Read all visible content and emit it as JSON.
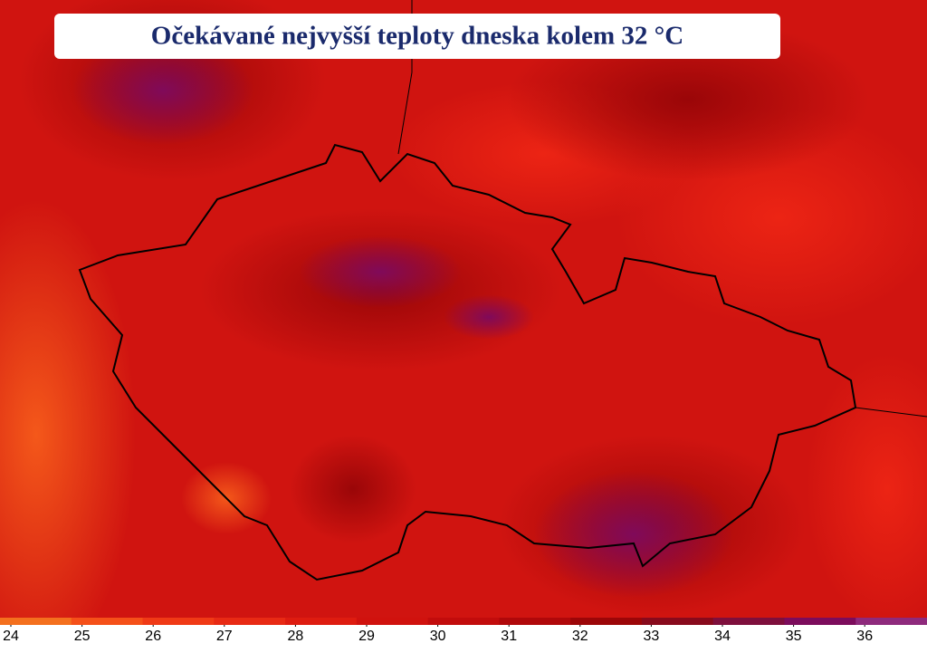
{
  "title": "Očekávané nejvyšší teploty dneska kolem 32 °C",
  "legend": {
    "ticks": [
      24,
      25,
      26,
      27,
      28,
      29,
      30,
      31,
      32,
      33,
      34,
      35,
      36
    ],
    "colors": [
      "#f4701e",
      "#f55019",
      "#f03a16",
      "#e82a14",
      "#de1c10",
      "#d0120e",
      "#c20c0c",
      "#b0080a",
      "#9c0608",
      "#880a1c",
      "#7e0f3c",
      "#7c0c5c",
      "#8e2a7c"
    ]
  }
}
